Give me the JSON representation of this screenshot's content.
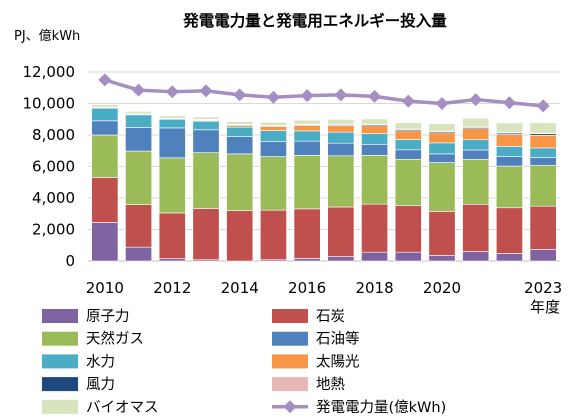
{
  "chart_data": {
    "type": "bar",
    "title": "発電電力量と発電用エネルギー投入量",
    "ylabel": "PJ、億kWh",
    "xlabel": "年度",
    "ylim": [
      0,
      12000
    ],
    "yticks": [
      0,
      2000,
      4000,
      6000,
      8000,
      10000,
      12000
    ],
    "ytick_labels": [
      "0",
      "2,000",
      "4,000",
      "6,000",
      "8,000",
      "10,000",
      "12,000"
    ],
    "x": [
      2010,
      2011,
      2012,
      2013,
      2014,
      2015,
      2016,
      2017,
      2018,
      2019,
      2020,
      2021,
      2022,
      2023
    ],
    "xtick_labels": [
      "2010",
      "2012",
      "2014",
      "2016",
      "2018",
      "2020",
      "2023"
    ],
    "xtick_years": [
      2010,
      2012,
      2014,
      2016,
      2018,
      2020,
      2023
    ],
    "grid": true,
    "legend_position": "bottom",
    "series": [
      {
        "name": "原子力",
        "color": "#8064a2",
        "values": [
          2450,
          880,
          150,
          80,
          0,
          80,
          160,
          280,
          560,
          560,
          350,
          600,
          480,
          730
        ]
      },
      {
        "name": "石炭",
        "color": "#c0504d",
        "values": [
          2850,
          2700,
          2900,
          3250,
          3200,
          3150,
          3150,
          3150,
          3050,
          2950,
          2800,
          3000,
          2900,
          2750
        ]
      },
      {
        "name": "天然ガス",
        "color": "#9bbb59",
        "values": [
          2700,
          3400,
          3500,
          3550,
          3600,
          3400,
          3400,
          3250,
          3100,
          2950,
          3100,
          2850,
          2650,
          2600
        ]
      },
      {
        "name": "石油等",
        "color": "#4f81bd",
        "values": [
          900,
          1500,
          1900,
          1450,
          1100,
          950,
          900,
          800,
          700,
          600,
          550,
          600,
          600,
          500
        ]
      },
      {
        "name": "水力",
        "color": "#4bacc6",
        "values": [
          800,
          800,
          550,
          550,
          600,
          700,
          650,
          700,
          680,
          650,
          700,
          650,
          650,
          600
        ]
      },
      {
        "name": "太陽光",
        "color": "#f79646",
        "values": [
          0,
          0,
          0,
          40,
          100,
          250,
          350,
          430,
          500,
          560,
          640,
          700,
          750,
          800
        ]
      },
      {
        "name": "風力",
        "color": "#1f497d",
        "values": [
          40,
          40,
          40,
          40,
          50,
          50,
          50,
          60,
          70,
          80,
          80,
          80,
          90,
          100
        ]
      },
      {
        "name": "地熱",
        "color": "#e6b9b8",
        "values": [
          30,
          30,
          30,
          30,
          30,
          30,
          30,
          30,
          30,
          30,
          30,
          40,
          40,
          40
        ]
      },
      {
        "name": "バイオマス",
        "color": "#d7e4bd",
        "values": [
          150,
          150,
          150,
          150,
          170,
          200,
          250,
          290,
          330,
          400,
          470,
          550,
          600,
          650
        ]
      }
    ],
    "line_series": {
      "name": "発電電力量(億kWh)",
      "color": "#a38fc2",
      "values": [
        11500,
        10850,
        10750,
        10800,
        10550,
        10400,
        10500,
        10550,
        10450,
        10150,
        10000,
        10250,
        10050,
        9850
      ]
    }
  }
}
